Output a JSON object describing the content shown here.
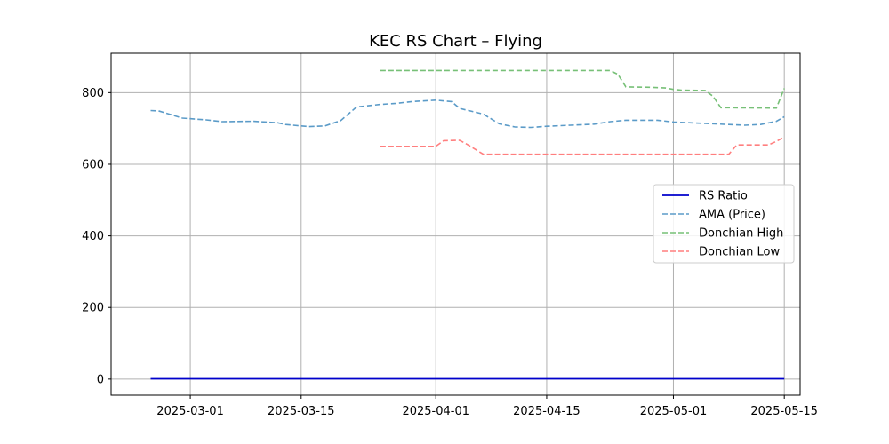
{
  "chart_data": {
    "type": "line",
    "title": "KEC RS Chart – Flying",
    "xlabel": "",
    "ylabel": "",
    "x_range": [
      "2025-02-19",
      "2025-05-17"
    ],
    "ylim": [
      -45,
      910
    ],
    "x_ticks": [
      "2025-03-01",
      "2025-03-15",
      "2025-04-01",
      "2025-04-15",
      "2025-05-01",
      "2025-05-15"
    ],
    "y_ticks": [
      0,
      200,
      400,
      600,
      800
    ],
    "grid": true,
    "legend_position": "center-right",
    "series": [
      {
        "name": "RS Ratio",
        "style": "solid",
        "color": "#0000cc",
        "points": [
          [
            "2025-02-24",
            1
          ],
          [
            "2025-05-15",
            1
          ]
        ]
      },
      {
        "name": "AMA (Price)",
        "style": "dashed",
        "color": "#5b9bc8",
        "points": [
          [
            "2025-02-24",
            750
          ],
          [
            "2025-02-25",
            749
          ],
          [
            "2025-02-28",
            729
          ],
          [
            "2025-03-03",
            724
          ],
          [
            "2025-03-05",
            719
          ],
          [
            "2025-03-09",
            720
          ],
          [
            "2025-03-12",
            716
          ],
          [
            "2025-03-13",
            711
          ],
          [
            "2025-03-14",
            709
          ],
          [
            "2025-03-16",
            705
          ],
          [
            "2025-03-18",
            707
          ],
          [
            "2025-03-20",
            722
          ],
          [
            "2025-03-22",
            760
          ],
          [
            "2025-03-25",
            767
          ],
          [
            "2025-03-27",
            770
          ],
          [
            "2025-03-29",
            775
          ],
          [
            "2025-04-01",
            779
          ],
          [
            "2025-04-03",
            775
          ],
          [
            "2025-04-04",
            756
          ],
          [
            "2025-04-07",
            740
          ],
          [
            "2025-04-09",
            713
          ],
          [
            "2025-04-11",
            704
          ],
          [
            "2025-04-13",
            703
          ],
          [
            "2025-04-15",
            706
          ],
          [
            "2025-04-18",
            709
          ],
          [
            "2025-04-21",
            712
          ],
          [
            "2025-04-23",
            719
          ],
          [
            "2025-04-25",
            723
          ],
          [
            "2025-04-29",
            723
          ],
          [
            "2025-05-01",
            718
          ],
          [
            "2025-05-03",
            716
          ],
          [
            "2025-05-05",
            714
          ],
          [
            "2025-05-08",
            711
          ],
          [
            "2025-05-10",
            709
          ],
          [
            "2025-05-12",
            711
          ],
          [
            "2025-05-14",
            720
          ],
          [
            "2025-05-15",
            733
          ]
        ]
      },
      {
        "name": "Donchian High",
        "style": "dashed",
        "color": "#77c077",
        "points": [
          [
            "2025-03-25",
            862
          ],
          [
            "2025-04-23",
            862
          ],
          [
            "2025-04-24",
            851
          ],
          [
            "2025-04-25",
            816
          ],
          [
            "2025-04-28",
            815
          ],
          [
            "2025-04-30",
            813
          ],
          [
            "2025-05-01",
            809
          ],
          [
            "2025-05-02",
            807
          ],
          [
            "2025-05-05",
            806
          ],
          [
            "2025-05-06",
            790
          ],
          [
            "2025-05-07",
            758
          ],
          [
            "2025-05-14",
            757
          ],
          [
            "2025-05-15",
            812
          ]
        ]
      },
      {
        "name": "Donchian Low",
        "style": "dashed",
        "color": "#ff7f7f",
        "points": [
          [
            "2025-03-25",
            650
          ],
          [
            "2025-04-01",
            650
          ],
          [
            "2025-04-02",
            666
          ],
          [
            "2025-04-04",
            667
          ],
          [
            "2025-04-05",
            655
          ],
          [
            "2025-04-07",
            628
          ],
          [
            "2025-05-08",
            628
          ],
          [
            "2025-05-09",
            654
          ],
          [
            "2025-05-13",
            654
          ],
          [
            "2025-05-14",
            664
          ],
          [
            "2025-05-15",
            676
          ]
        ]
      }
    ]
  }
}
